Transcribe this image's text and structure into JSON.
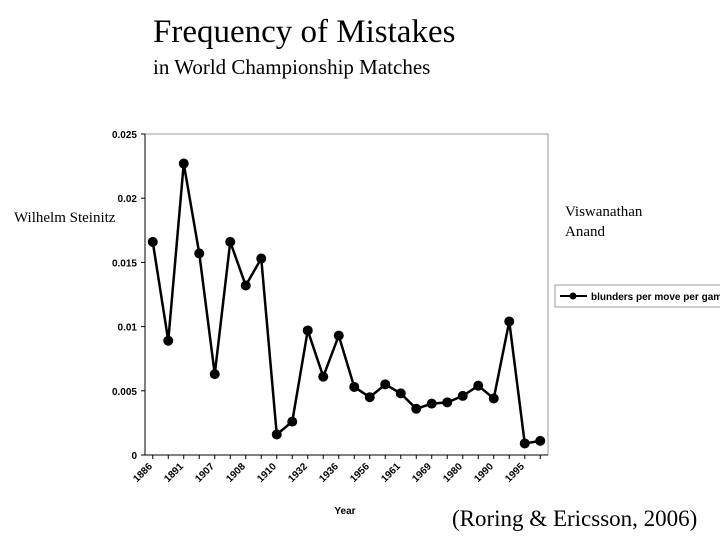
{
  "chart_data": {
    "type": "line",
    "title": "Frequency of Mistakes",
    "subtitle": "in World Championship Matches",
    "x_label": "Year",
    "annotations": [
      "Wilhelm Steinitz",
      "Viswanathan",
      "Anand"
    ],
    "source": "(Roring & Ericsson, 2006)",
    "categories": [
      "1886",
      null,
      "1891",
      null,
      "1907",
      null,
      "1908",
      null,
      "1910",
      null,
      "1932",
      null,
      "1936",
      null,
      "1956",
      null,
      "1961",
      null,
      "1969",
      null,
      "1980",
      null,
      "1990",
      null,
      "1995",
      null
    ],
    "series": [
      {
        "name": "blunders per move per game",
        "color": "#000000",
        "values": [
          0.0166,
          0.0089,
          0.0227,
          0.0157,
          0.0063,
          0.0166,
          0.0132,
          0.0153,
          0.0016,
          0.0026,
          0.0097,
          0.0061,
          0.0093,
          0.0053,
          0.0045,
          0.0055,
          0.0048,
          0.0036,
          0.004,
          0.0041,
          0.0046,
          0.0054,
          0.0044,
          0.0104,
          0.0009,
          0.0011
        ]
      }
    ],
    "ylim": [
      0,
      0.025
    ],
    "yticks": [
      0,
      0.005,
      0.01,
      0.015,
      0.02,
      0.025
    ],
    "legend": "right"
  }
}
